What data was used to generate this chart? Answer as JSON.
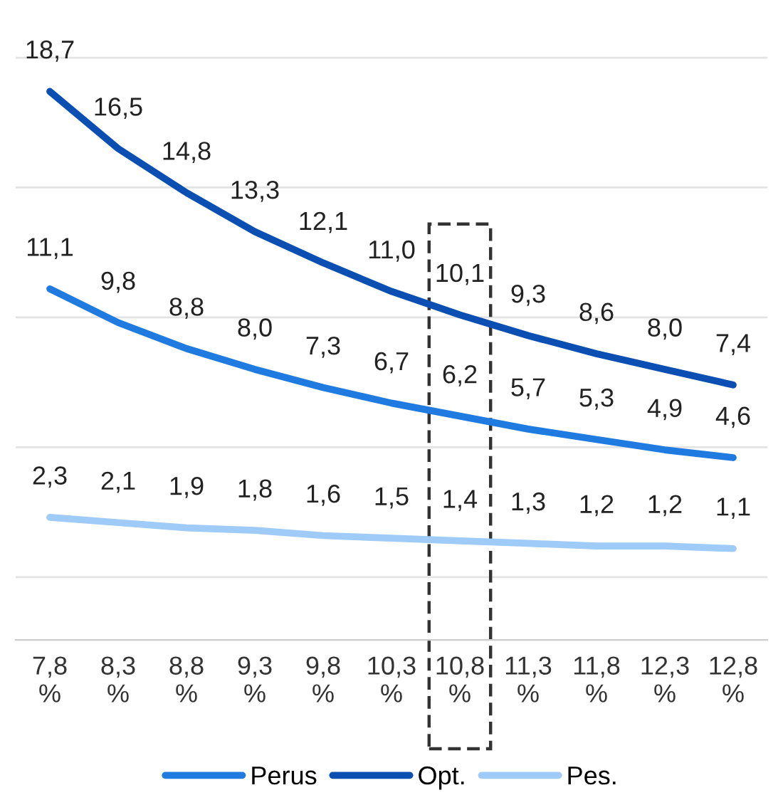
{
  "chart_data": {
    "type": "line",
    "categories": [
      "7,8\n%",
      "8,3\n%",
      "8,8\n%",
      "9,3\n%",
      "9,8\n%",
      "10,3\n%",
      "10,8\n%",
      "11,3\n%",
      "11,8\n%",
      "12,3\n%",
      "12,8\n%"
    ],
    "series": [
      {
        "name": "Perus",
        "color": "#1f7be0",
        "values": [
          11.1,
          9.8,
          8.8,
          8.0,
          7.3,
          6.7,
          6.2,
          5.7,
          5.3,
          4.9,
          4.6
        ],
        "value_labels": [
          "11,1",
          "9,8",
          "8,8",
          "8,0",
          "7,3",
          "6,7",
          "6,2",
          "5,7",
          "5,3",
          "4,9",
          "4,6"
        ]
      },
      {
        "name": "Opt.",
        "color": "#0b4fb3",
        "values": [
          18.7,
          16.5,
          14.8,
          13.3,
          12.1,
          11.0,
          10.1,
          9.3,
          8.6,
          8.0,
          7.4
        ],
        "value_labels": [
          "18,7",
          "16,5",
          "14,8",
          "13,3",
          "12,1",
          "11,0",
          "10,1",
          "9,3",
          "8,6",
          "8,0",
          "7,4"
        ]
      },
      {
        "name": "Pes.",
        "color": "#9ecbf7",
        "values": [
          2.3,
          2.1,
          1.9,
          1.8,
          1.6,
          1.5,
          1.4,
          1.3,
          1.2,
          1.2,
          1.1
        ],
        "value_labels": [
          "2,3",
          "2,1",
          "1,9",
          "1,8",
          "1,6",
          "1,5",
          "1,4",
          "1,3",
          "1,2",
          "1,2",
          "1,1"
        ]
      }
    ],
    "grid": "y",
    "legend": "bottom",
    "marker": "none",
    "line_style": "solid"
  }
}
